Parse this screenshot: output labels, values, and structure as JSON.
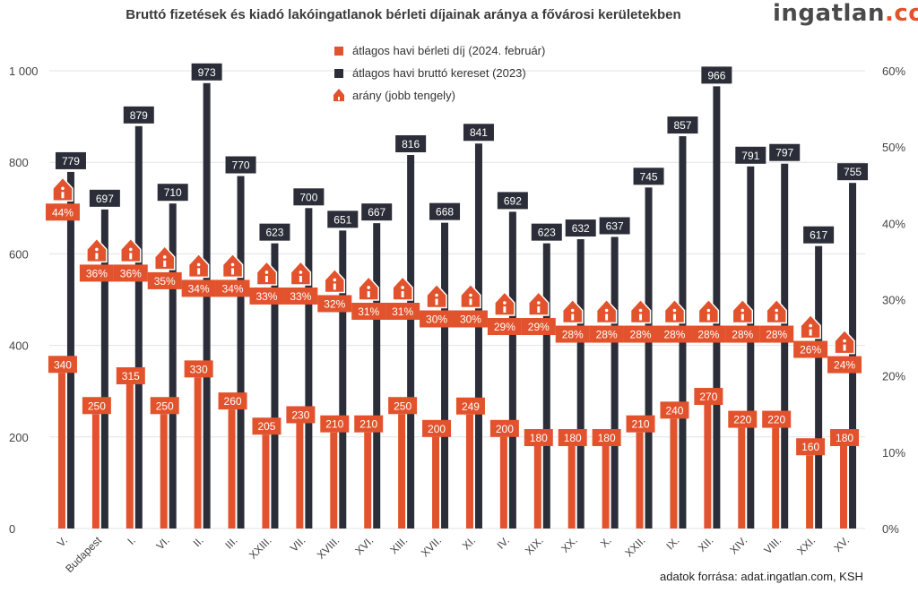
{
  "header": {
    "title": "Bruttó fizetések és kiadó lakóingatlanok bérleti díjainak aránya a fővárosi kerületekben",
    "brand_name": "ingatlan",
    "brand_suffix": ".com"
  },
  "footer": {
    "source": "adatok forrása: adat.ingatlan.com, KSH"
  },
  "colors": {
    "rent": "#e2522c",
    "salary": "#2b2e38",
    "grid": "#e3e3e3",
    "ratio_label": "#e2522c"
  },
  "chart_data": {
    "type": "bar",
    "title": "Bruttó fizetések és kiadó lakóingatlanok bérleti díjainak aránya a fővárosi kerületekben",
    "categories": [
      "V.",
      "Budapest",
      "I.",
      "VI.",
      "II.",
      "III.",
      "XXIII.",
      "VII.",
      "XVIII.",
      "XVI.",
      "XIII.",
      "XVII.",
      "XI.",
      "IV.",
      "XIX.",
      "XX.",
      "X.",
      "XXII.",
      "IX.",
      "XII.",
      "XIV.",
      "VIII.",
      "XXI.",
      "XV."
    ],
    "series": [
      {
        "name": "átlagos havi bérleti díj (2024. február)",
        "type": "bar",
        "axis": "left",
        "values": [
          340,
          250,
          315,
          250,
          330,
          260,
          205,
          230,
          210,
          210,
          250,
          200,
          249,
          200,
          180,
          180,
          180,
          210,
          240,
          270,
          220,
          220,
          160,
          180
        ]
      },
      {
        "name": "átlagos havi bruttó kereset (2023)",
        "type": "bar",
        "axis": "left",
        "values": [
          779,
          697,
          879,
          710,
          973,
          770,
          623,
          700,
          651,
          667,
          816,
          668,
          841,
          692,
          623,
          632,
          637,
          745,
          857,
          966,
          791,
          797,
          617,
          755
        ]
      },
      {
        "name": "arány (jobb tengely)",
        "type": "marker",
        "axis": "right",
        "values": [
          44,
          36,
          36,
          35,
          34,
          34,
          33,
          33,
          32,
          31,
          31,
          30,
          30,
          29,
          29,
          28,
          28,
          28,
          28,
          28,
          28,
          28,
          26,
          24
        ],
        "labels": [
          "44%",
          "36%",
          "36%",
          "35%",
          "34%",
          "34%",
          "33%",
          "33%",
          "32%",
          "31%",
          "31%",
          "30%",
          "30%",
          "29%",
          "29%",
          "28%",
          "28%",
          "28%",
          "28%",
          "28%",
          "28%",
          "28%",
          "26%",
          "24%"
        ]
      }
    ],
    "y_left": {
      "ylim": [
        0,
        1000
      ],
      "ticks": [
        0,
        200,
        400,
        600,
        800,
        1000
      ],
      "tick_labels": [
        "0",
        "200",
        "400",
        "600",
        "800",
        "1 000"
      ]
    },
    "y_right": {
      "ylim": [
        0,
        60
      ],
      "ticks": [
        0,
        10,
        20,
        30,
        40,
        50,
        60
      ],
      "tick_labels": [
        "0%",
        "10%",
        "20%",
        "30%",
        "40%",
        "50%",
        "60%"
      ]
    },
    "grid": true,
    "legend_position": "top-center"
  }
}
